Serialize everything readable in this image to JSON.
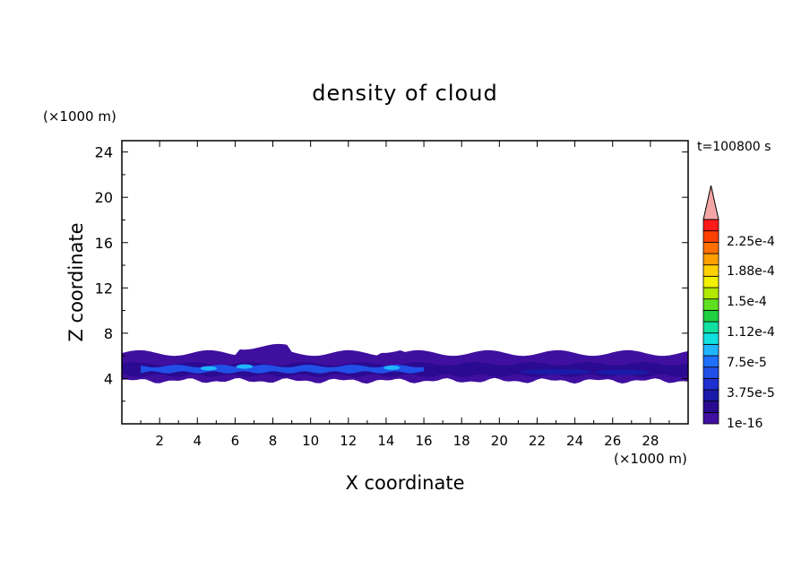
{
  "chart_data": {
    "type": "heatmap",
    "title": "density of cloud",
    "xlabel": "X coordinate",
    "ylabel": "Z coordinate",
    "x_unit": "(×1000 m)",
    "y_unit": "(×1000 m)",
    "time_label": "t=100800 s",
    "xlim": [
      0,
      30
    ],
    "ylim": [
      0,
      25
    ],
    "x_ticks": [
      "2",
      "4",
      "6",
      "8",
      "10",
      "12",
      "14",
      "16",
      "18",
      "20",
      "22",
      "24",
      "26",
      "28"
    ],
    "y_ticks": [
      "4",
      "8",
      "12",
      "16",
      "20",
      "24"
    ],
    "colorbar": {
      "labels": [
        "2.25e-4",
        "1.88e-4",
        "1.5e-4",
        "1.12e-4",
        "7.5e-5",
        "3.75e-5",
        "1e-16"
      ],
      "colors": [
        "#3f0fa0",
        "#2a0a90",
        "#1a1aa8",
        "#1f2fd0",
        "#2050e8",
        "#2070ff",
        "#1fb6ff",
        "#10e0e0",
        "#10e0a0",
        "#20d040",
        "#60e020",
        "#b0e800",
        "#f0f000",
        "#ffd000",
        "#ffa000",
        "#ff7000",
        "#ff4000",
        "#ff1a1a"
      ],
      "extend_color": "#f4a6a6"
    },
    "cloud_layer": {
      "z_bottom": 3.8,
      "z_top": 6.4,
      "x_range": [
        0,
        30
      ],
      "peak_band_x": [
        2,
        16
      ],
      "peak_band_z": 4.8
    }
  }
}
